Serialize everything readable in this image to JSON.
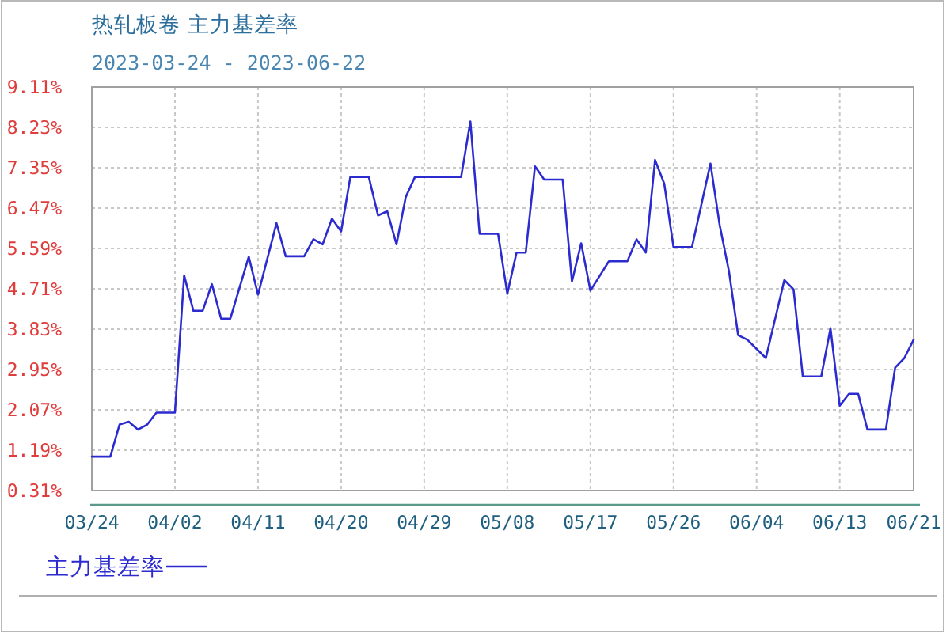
{
  "chart_data": {
    "type": "line",
    "title": "热轧板卷 主力基差率",
    "subtitle": "2023-03-24 - 2023-06-22",
    "x": [
      "2023-03-24",
      "2023-03-26",
      "2023-03-27",
      "2023-03-28",
      "2023-03-29",
      "2023-03-30",
      "2023-03-31",
      "2023-04-02",
      "2023-04-03",
      "2023-04-04",
      "2023-04-05",
      "2023-04-06",
      "2023-04-07",
      "2023-04-08",
      "2023-04-10",
      "2023-04-11",
      "2023-04-13",
      "2023-04-14",
      "2023-04-16",
      "2023-04-17",
      "2023-04-18",
      "2023-04-19",
      "2023-04-20",
      "2023-04-21",
      "2023-04-23",
      "2023-04-24",
      "2023-04-25",
      "2023-04-26",
      "2023-04-27",
      "2023-04-28",
      "2023-05-03",
      "2023-05-04",
      "2023-05-05",
      "2023-05-07",
      "2023-05-08",
      "2023-05-09",
      "2023-05-10",
      "2023-05-11",
      "2023-05-12",
      "2023-05-14",
      "2023-05-15",
      "2023-05-16",
      "2023-05-17",
      "2023-05-19",
      "2023-05-21",
      "2023-05-22",
      "2023-05-23",
      "2023-05-24",
      "2023-05-25",
      "2023-05-26",
      "2023-05-28",
      "2023-05-30",
      "2023-05-31",
      "2023-06-01",
      "2023-06-02",
      "2023-06-03",
      "2023-06-05",
      "2023-06-07",
      "2023-06-08",
      "2023-06-09",
      "2023-06-11",
      "2023-06-12",
      "2023-06-13",
      "2023-06-14",
      "2023-06-15",
      "2023-06-16",
      "2023-06-18",
      "2023-06-19",
      "2023-06-20",
      "2023-06-21"
    ],
    "series": [
      {
        "name": "主力基差率",
        "color": "#2b2bd0",
        "values": [
          1.05,
          1.05,
          1.75,
          1.81,
          1.64,
          1.75,
          2.01,
          2.01,
          5.0,
          4.23,
          4.23,
          4.81,
          4.06,
          4.06,
          5.41,
          4.58,
          6.14,
          5.42,
          5.42,
          5.79,
          5.68,
          6.24,
          5.96,
          7.15,
          7.15,
          6.31,
          6.4,
          5.68,
          6.71,
          7.15,
          7.15,
          8.36,
          5.91,
          5.91,
          4.6,
          5.5,
          5.5,
          7.38,
          7.09,
          7.09,
          4.87,
          5.7,
          4.67,
          5.31,
          5.31,
          5.79,
          5.5,
          7.52,
          7.0,
          5.62,
          5.62,
          7.44,
          6.1,
          5.1,
          3.7,
          3.6,
          3.2,
          4.9,
          4.7,
          2.8,
          2.8,
          3.85,
          2.16,
          2.42,
          2.42,
          1.64,
          1.64,
          2.99,
          3.2,
          3.6
        ]
      }
    ],
    "xlim": [
      "2023-03-24",
      "2023-06-21"
    ],
    "xticks": [
      {
        "value": "2023-03-24",
        "label": "03/24"
      },
      {
        "value": "2023-04-02",
        "label": "04/02"
      },
      {
        "value": "2023-04-11",
        "label": "04/11"
      },
      {
        "value": "2023-04-20",
        "label": "04/20"
      },
      {
        "value": "2023-04-29",
        "label": "04/29"
      },
      {
        "value": "2023-05-08",
        "label": "05/08"
      },
      {
        "value": "2023-05-17",
        "label": "05/17"
      },
      {
        "value": "2023-05-26",
        "label": "05/26"
      },
      {
        "value": "2023-06-04",
        "label": "06/04"
      },
      {
        "value": "2023-06-13",
        "label": "06/13"
      },
      {
        "value": "2023-06-21",
        "label": "06/21"
      }
    ],
    "ylim": [
      0.31,
      9.11
    ],
    "yticks": [
      {
        "value": 0.31,
        "label": "0.31%"
      },
      {
        "value": 1.19,
        "label": "1.19%"
      },
      {
        "value": 2.07,
        "label": "2.07%"
      },
      {
        "value": 2.95,
        "label": "2.95%"
      },
      {
        "value": 3.83,
        "label": "3.83%"
      },
      {
        "value": 4.71,
        "label": "4.71%"
      },
      {
        "value": 5.59,
        "label": "5.59%"
      },
      {
        "value": 6.47,
        "label": "6.47%"
      },
      {
        "value": 7.35,
        "label": "7.35%"
      },
      {
        "value": 8.23,
        "label": "8.23%"
      },
      {
        "value": 9.11,
        "label": "9.11%"
      }
    ],
    "grid": true,
    "legend": "bottom left",
    "line_style": "solid"
  }
}
